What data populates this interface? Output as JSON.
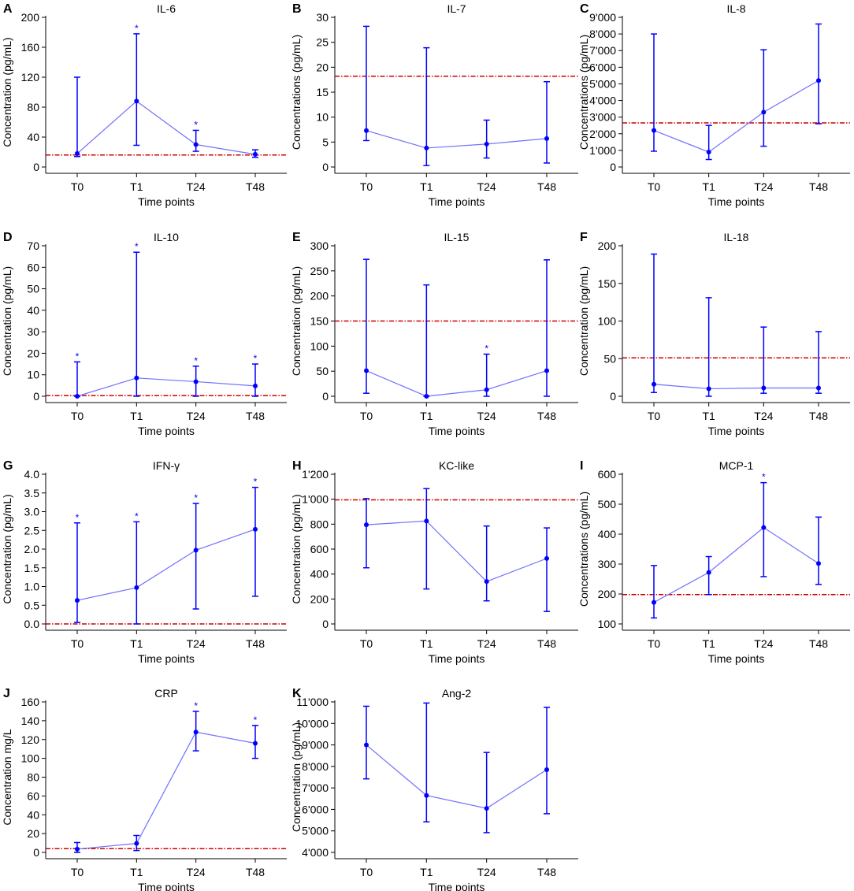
{
  "colors": {
    "series": "#0000ff",
    "line": "#7070ff",
    "reference": "#cc0000",
    "axis": "#000000"
  },
  "chart_data": [
    {
      "letter": "A",
      "type": "line",
      "title": "IL-6",
      "ylabel": "Concentration (pg/mL)",
      "xlabel": "Time points",
      "categories": [
        "T0",
        "T1",
        "T24",
        "T48"
      ],
      "ylim": [
        0,
        200
      ],
      "yticks": [
        0,
        40,
        80,
        120,
        160,
        200
      ],
      "ytick_labels": [
        "0",
        "40",
        "80",
        "120",
        "160",
        "200"
      ],
      "values": [
        18,
        88,
        30,
        17
      ],
      "lower": [
        14,
        29,
        21,
        13
      ],
      "upper": [
        120,
        178,
        49,
        23
      ],
      "reference": 16,
      "significant": [
        false,
        true,
        true,
        false
      ]
    },
    {
      "letter": "B",
      "type": "line",
      "title": "IL-7",
      "ylabel": "Concentrations (pg/mL)",
      "xlabel": "Time points",
      "categories": [
        "T0",
        "T1",
        "T24",
        "T48"
      ],
      "ylim": [
        0,
        30
      ],
      "yticks": [
        0,
        5,
        10,
        15,
        20,
        25,
        30
      ],
      "ytick_labels": [
        "0",
        "5",
        "10",
        "15",
        "20",
        "25",
        "30"
      ],
      "values": [
        7.3,
        3.8,
        4.6,
        5.7
      ],
      "lower": [
        5.3,
        0.3,
        1.8,
        0.8
      ],
      "upper": [
        28.2,
        23.9,
        9.4,
        17.1
      ],
      "reference": 18.2,
      "significant": [
        false,
        false,
        false,
        false
      ]
    },
    {
      "letter": "C",
      "type": "line",
      "title": "IL-8",
      "ylabel": "Concentrations (pg/mL)",
      "xlabel": "Time points",
      "categories": [
        "T0",
        "T1",
        "T24",
        "T48"
      ],
      "ylim": [
        0,
        9000
      ],
      "yticks": [
        0,
        1000,
        2000,
        3000,
        4000,
        5000,
        6000,
        7000,
        8000,
        9000
      ],
      "ytick_labels": [
        "0",
        "1'000",
        "2'000",
        "3'000",
        "4'000",
        "5'000",
        "6'000",
        "7'000",
        "8'000",
        "9'000"
      ],
      "values": [
        2200,
        900,
        3300,
        5200
      ],
      "lower": [
        950,
        450,
        1250,
        2600
      ],
      "upper": [
        8000,
        2500,
        7050,
        8600
      ],
      "reference": 2650,
      "significant": [
        false,
        false,
        false,
        false
      ]
    },
    {
      "letter": "D",
      "type": "line",
      "title": "IL-10",
      "ylabel": "Concentration (pg/mL)",
      "xlabel": "Time points",
      "categories": [
        "T0",
        "T1",
        "T24",
        "T48"
      ],
      "ylim": [
        0,
        70
      ],
      "yticks": [
        0,
        10,
        20,
        30,
        40,
        50,
        60,
        70
      ],
      "ytick_labels": [
        "0",
        "10",
        "20",
        "30",
        "40",
        "50",
        "60",
        "70"
      ],
      "values": [
        0,
        8.5,
        6.8,
        4.8
      ],
      "lower": [
        0,
        0,
        0,
        0
      ],
      "upper": [
        16,
        67,
        14,
        15
      ],
      "reference": 0.3,
      "significant": [
        true,
        true,
        true,
        true
      ]
    },
    {
      "letter": "E",
      "type": "line",
      "title": "IL-15",
      "ylabel": "Concentration (pg/mL)",
      "xlabel": "Time points",
      "categories": [
        "T0",
        "T1",
        "T24",
        "T48"
      ],
      "ylim": [
        0,
        300
      ],
      "yticks": [
        0,
        50,
        100,
        150,
        200,
        250,
        300
      ],
      "ytick_labels": [
        "0",
        "50",
        "100",
        "150",
        "200",
        "250",
        "300"
      ],
      "values": [
        51,
        0,
        13,
        51
      ],
      "lower": [
        6,
        0,
        0,
        0
      ],
      "upper": [
        273,
        222,
        84,
        272
      ],
      "reference": 150,
      "significant": [
        false,
        false,
        true,
        false
      ]
    },
    {
      "letter": "F",
      "type": "line",
      "title": "IL-18",
      "ylabel": "Concentration (pg/mL)",
      "xlabel": "Time points",
      "categories": [
        "T0",
        "T1",
        "T24",
        "T48"
      ],
      "ylim": [
        0,
        200
      ],
      "yticks": [
        0,
        50,
        100,
        150,
        200
      ],
      "ytick_labels": [
        "0",
        "50",
        "100",
        "150",
        "200"
      ],
      "values": [
        16,
        10,
        11,
        11
      ],
      "lower": [
        5,
        0,
        4,
        4
      ],
      "upper": [
        189,
        131,
        92,
        86
      ],
      "reference": 51,
      "significant": [
        false,
        false,
        false,
        false
      ]
    },
    {
      "letter": "G",
      "type": "line",
      "title": "IFN-γ",
      "ylabel": "Concentration (pg/mL)",
      "xlabel": "Time points",
      "categories": [
        "T0",
        "T1",
        "T24",
        "T48"
      ],
      "ylim": [
        0,
        4
      ],
      "yticks": [
        0,
        0.5,
        1,
        1.5,
        2,
        2.5,
        3,
        3.5,
        4
      ],
      "ytick_labels": [
        "0.0",
        "0.5",
        "1.0",
        "1.5",
        "2.0",
        "2.5",
        "3.0",
        "3.5",
        "4.0"
      ],
      "values": [
        0.63,
        0.97,
        1.97,
        2.53
      ],
      "lower": [
        0.04,
        0,
        0.4,
        0.74
      ],
      "upper": [
        2.7,
        2.73,
        3.22,
        3.65
      ],
      "reference": 0,
      "significant": [
        true,
        true,
        true,
        true
      ]
    },
    {
      "letter": "H",
      "type": "line",
      "title": "KC-like",
      "ylabel": "Concentration (pg/mL)",
      "xlabel": "Time points",
      "categories": [
        "T0",
        "T1",
        "T24",
        "T48"
      ],
      "ylim": [
        0,
        1200
      ],
      "yticks": [
        0,
        200,
        400,
        600,
        800,
        1000,
        1200
      ],
      "ytick_labels": [
        "0",
        "200",
        "400",
        "600",
        "800",
        "1'000",
        "1'200"
      ],
      "values": [
        795,
        825,
        340,
        525
      ],
      "lower": [
        450,
        280,
        185,
        100
      ],
      "upper": [
        1005,
        1085,
        785,
        770
      ],
      "reference": 995,
      "significant": [
        false,
        false,
        false,
        false
      ]
    },
    {
      "letter": "I",
      "type": "line",
      "title": "MCP-1",
      "ylabel": "Concentrations (pg/mL)",
      "xlabel": "Time points",
      "categories": [
        "T0",
        "T1",
        "T24",
        "T48"
      ],
      "ylim": [
        100,
        600
      ],
      "yticks": [
        100,
        200,
        300,
        400,
        500,
        600
      ],
      "ytick_labels": [
        "100",
        "200",
        "300",
        "400",
        "500",
        "600"
      ],
      "values": [
        172,
        272,
        422,
        302
      ],
      "lower": [
        120,
        198,
        258,
        232
      ],
      "upper": [
        295,
        325,
        572,
        457
      ],
      "reference": 198,
      "significant": [
        false,
        false,
        true,
        false
      ]
    },
    {
      "letter": "J",
      "type": "line",
      "title": "CRP",
      "ylabel": "Concentration mg/L",
      "xlabel": "Time points",
      "categories": [
        "T0",
        "T1",
        "T24",
        "T48"
      ],
      "ylim": [
        0,
        160
      ],
      "yticks": [
        0,
        20,
        40,
        60,
        80,
        100,
        120,
        140,
        160
      ],
      "ytick_labels": [
        "0",
        "20",
        "40",
        "60",
        "80",
        "100",
        "120",
        "140",
        "160"
      ],
      "values": [
        3.5,
        9.5,
        128,
        116
      ],
      "lower": [
        0,
        2,
        108,
        100
      ],
      "upper": [
        10.5,
        18,
        150,
        135
      ],
      "reference": 4,
      "significant": [
        false,
        false,
        true,
        true
      ]
    },
    {
      "letter": "K",
      "type": "line",
      "title": "Ang-2",
      "ylabel": "Concentration (pg/mL)",
      "xlabel": "Time points",
      "categories": [
        "T0",
        "T1",
        "T24",
        "T48"
      ],
      "ylim": [
        4000,
        11000
      ],
      "yticks": [
        4000,
        5000,
        6000,
        7000,
        8000,
        9000,
        10000,
        11000
      ],
      "ytick_labels": [
        "4'000",
        "5'000",
        "6'000",
        "7'000",
        "8'000",
        "9'000",
        "10'000",
        "11'000"
      ],
      "values": [
        9000,
        6650,
        6050,
        7850
      ],
      "lower": [
        7420,
        5420,
        4920,
        5800
      ],
      "upper": [
        10800,
        10950,
        8650,
        10750
      ],
      "reference": null,
      "significant": [
        false,
        false,
        false,
        false
      ]
    }
  ]
}
